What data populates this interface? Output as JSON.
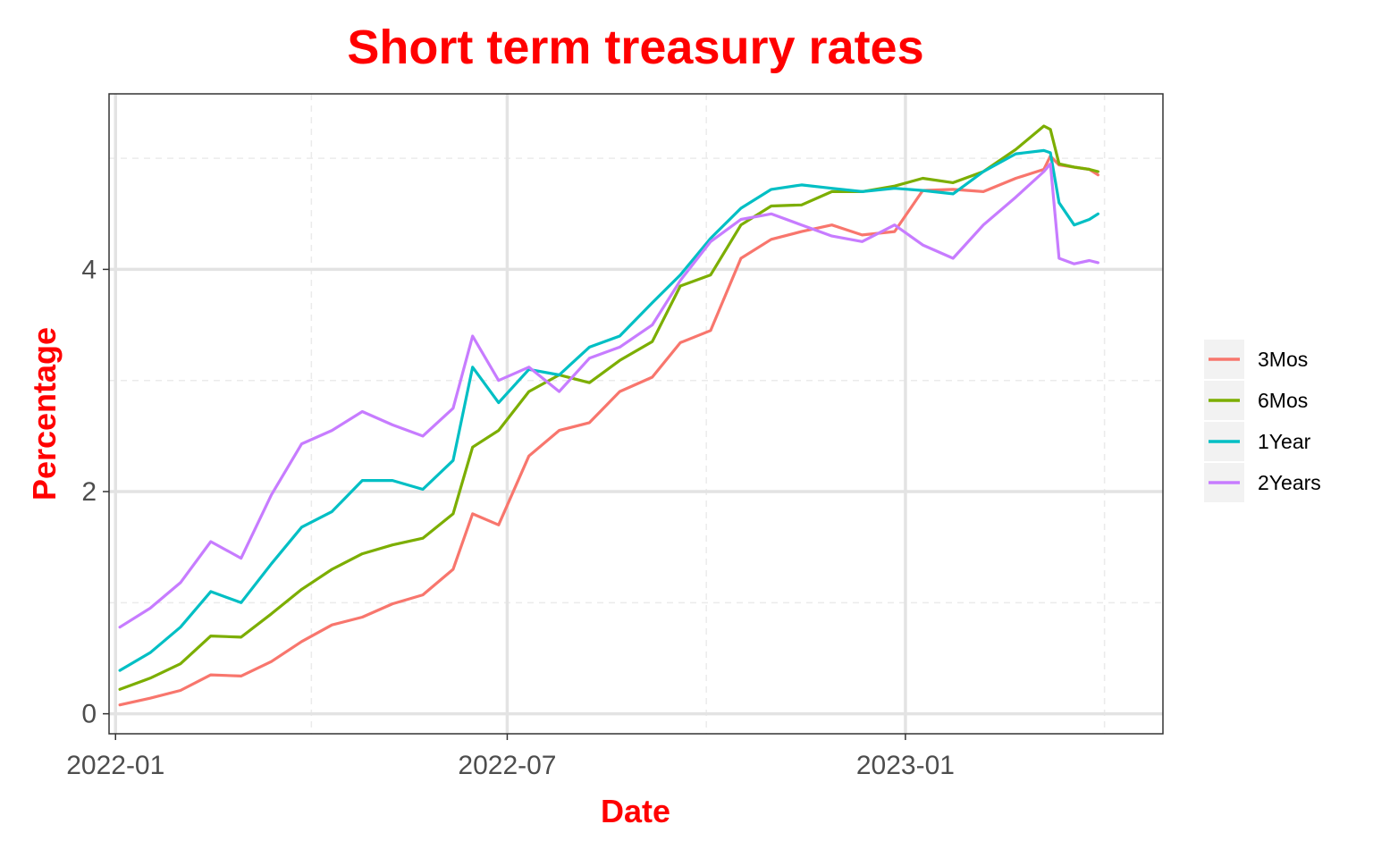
{
  "chart_data": {
    "type": "line",
    "title": "Short term treasury rates",
    "xlabel": "Date",
    "ylabel": "Percentage",
    "x_ticks": [
      "2022-01",
      "2022-07",
      "2023-01"
    ],
    "y_ticks": [
      "0",
      "2",
      "4"
    ],
    "xlim": [
      "2021-12-29",
      "2023-04-30"
    ],
    "ylim": [
      -0.18,
      5.58
    ],
    "grid": true,
    "legend_position": "right",
    "x": [
      "2022-01-03",
      "2022-01-17",
      "2022-01-31",
      "2022-02-14",
      "2022-02-28",
      "2022-03-14",
      "2022-03-28",
      "2022-04-11",
      "2022-04-25",
      "2022-05-09",
      "2022-05-23",
      "2022-06-06",
      "2022-06-15",
      "2022-06-27",
      "2022-07-11",
      "2022-07-25",
      "2022-08-08",
      "2022-08-22",
      "2022-09-06",
      "2022-09-19",
      "2022-10-03",
      "2022-10-17",
      "2022-10-31",
      "2022-11-14",
      "2022-11-28",
      "2022-12-12",
      "2022-12-27",
      "2023-01-09",
      "2023-01-23",
      "2023-02-06",
      "2023-02-21",
      "2023-03-06",
      "2023-03-09",
      "2023-03-13",
      "2023-03-20",
      "2023-03-27",
      "2023-03-31"
    ],
    "series": [
      {
        "name": "3Mos",
        "color": "#F8766D",
        "values": [
          0.08,
          0.14,
          0.21,
          0.35,
          0.34,
          0.47,
          0.65,
          0.8,
          0.87,
          0.99,
          1.07,
          1.3,
          1.8,
          1.7,
          2.32,
          2.55,
          2.62,
          2.9,
          3.03,
          3.34,
          3.45,
          4.1,
          4.27,
          4.34,
          4.4,
          4.31,
          4.34,
          4.71,
          4.72,
          4.7,
          4.82,
          4.9,
          5.02,
          4.94,
          4.92,
          4.9,
          4.85
        ]
      },
      {
        "name": "6Mos",
        "color": "#7CAE00",
        "values": [
          0.22,
          0.32,
          0.45,
          0.7,
          0.69,
          0.9,
          1.12,
          1.3,
          1.44,
          1.52,
          1.58,
          1.8,
          2.4,
          2.55,
          2.9,
          3.05,
          2.98,
          3.18,
          3.35,
          3.85,
          3.95,
          4.4,
          4.57,
          4.58,
          4.7,
          4.7,
          4.75,
          4.82,
          4.78,
          4.88,
          5.08,
          5.29,
          5.26,
          4.95,
          4.92,
          4.9,
          4.88
        ]
      },
      {
        "name": "1Year",
        "color": "#00BFC4",
        "values": [
          0.39,
          0.55,
          0.78,
          1.1,
          1.0,
          1.35,
          1.68,
          1.82,
          2.1,
          2.1,
          2.02,
          2.28,
          3.12,
          2.8,
          3.1,
          3.05,
          3.3,
          3.4,
          3.7,
          3.95,
          4.28,
          4.55,
          4.72,
          4.76,
          4.73,
          4.7,
          4.73,
          4.71,
          4.68,
          4.88,
          5.04,
          5.07,
          5.05,
          4.6,
          4.4,
          4.45,
          4.5
        ]
      },
      {
        "name": "2Years",
        "color": "#C77CFF",
        "values": [
          0.78,
          0.95,
          1.18,
          1.55,
          1.4,
          1.97,
          2.43,
          2.55,
          2.72,
          2.6,
          2.5,
          2.75,
          3.4,
          3.0,
          3.12,
          2.9,
          3.2,
          3.3,
          3.5,
          3.9,
          4.25,
          4.45,
          4.5,
          4.4,
          4.3,
          4.25,
          4.4,
          4.22,
          4.1,
          4.4,
          4.65,
          4.88,
          4.95,
          4.1,
          4.05,
          4.08,
          4.06
        ]
      }
    ]
  }
}
